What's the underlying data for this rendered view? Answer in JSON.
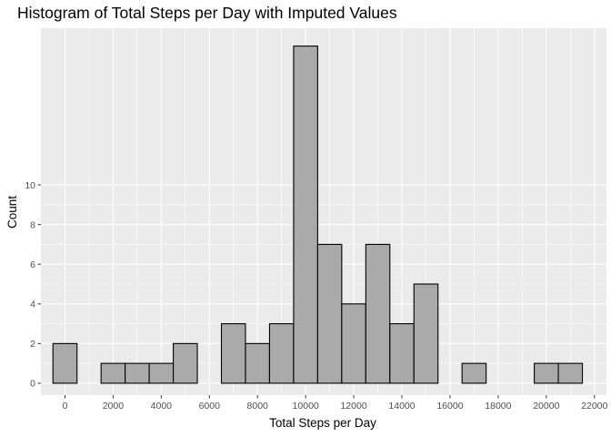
{
  "chart_data": {
    "type": "bar",
    "title": "Histogram of Total Steps per Day with Imputed Values",
    "xlabel": "Total Steps per Day",
    "ylabel": "Count",
    "bin_width": 1000,
    "bin_centers": [
      0,
      1000,
      2000,
      3000,
      4000,
      5000,
      6000,
      7000,
      8000,
      9000,
      10000,
      11000,
      12000,
      13000,
      14000,
      15000,
      16000,
      17000,
      18000,
      19000,
      20000,
      21000
    ],
    "values": [
      2,
      0,
      1,
      1,
      1,
      2,
      0,
      3,
      2,
      3,
      17,
      7,
      4,
      7,
      3,
      5,
      0,
      1,
      0,
      0,
      1,
      1
    ],
    "xlim": [
      -1000,
      22500
    ],
    "ylim": [
      -0.6,
      17.9
    ],
    "x_ticks": [
      0,
      2000,
      4000,
      6000,
      8000,
      10000,
      12000,
      14000,
      16000,
      18000,
      20000,
      22000
    ],
    "x_tick_labels": [
      "0",
      "2000",
      "4000",
      "6000",
      "8000",
      "10000",
      "12000",
      "14000",
      "16000",
      "18000",
      "20000",
      "22000"
    ],
    "y_ticks": [
      0,
      2,
      4,
      6,
      8,
      10
    ],
    "y_tick_labels": [
      "0",
      "2",
      "4",
      "6",
      "8",
      "10"
    ],
    "grid": true,
    "colors": {
      "panel": "#ebebeb",
      "grid": "#ffffff",
      "bar_fill": "#aaaaaa",
      "bar_outline": "#000000"
    }
  }
}
